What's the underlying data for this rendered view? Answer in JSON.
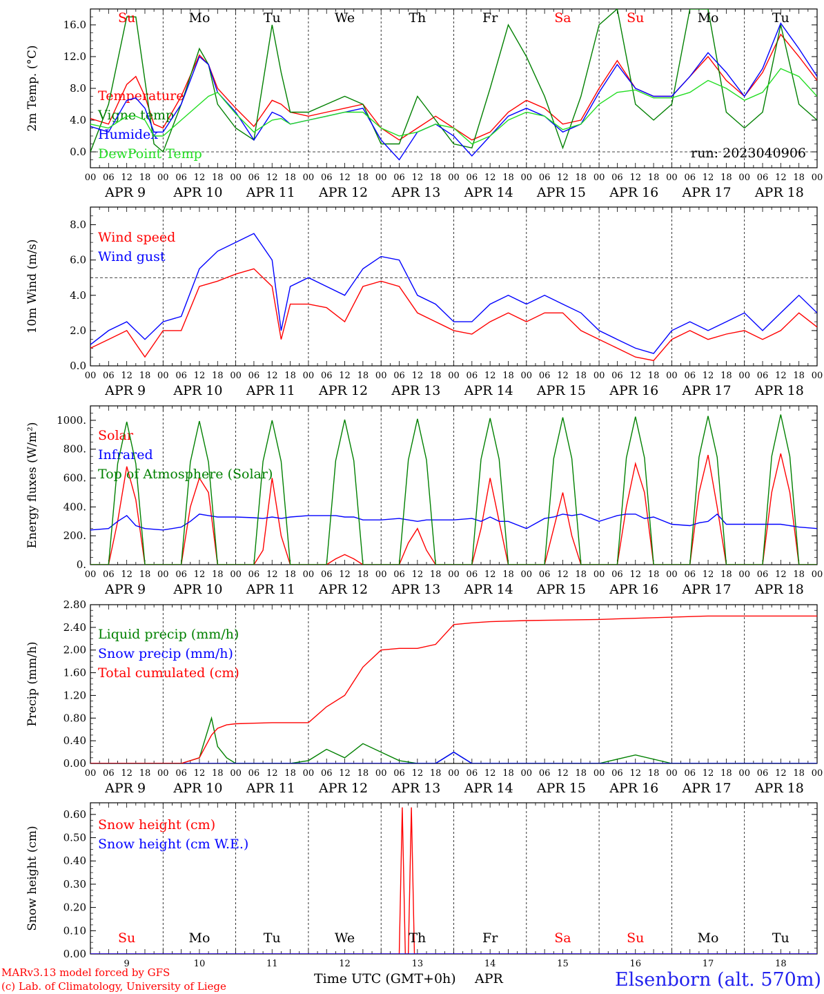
{
  "colors": {
    "red": "#ff0000",
    "blue": "#0000ff",
    "green": "#008000",
    "lightgreen": "#22dd22",
    "station": "#2222ee"
  },
  "days": [
    "Su",
    "Mo",
    "Tu",
    "We",
    "Th",
    "Fr",
    "Sa",
    "Su",
    "Mo",
    "Tu"
  ],
  "day_colors": [
    "#ff0000",
    "#000000",
    "#000000",
    "#000000",
    "#000000",
    "#000000",
    "#ff0000",
    "#ff0000",
    "#000000",
    "#000000"
  ],
  "dates": [
    "APR  9",
    "APR 10",
    "APR 11",
    "APR 12",
    "APR 13",
    "APR 14",
    "APR 15",
    "APR 16",
    "APR 17",
    "APR 18"
  ],
  "day_numbers": [
    "9",
    "10",
    "11",
    "12",
    "13",
    "14",
    "15",
    "16",
    "17",
    "18"
  ],
  "hour_labels": [
    "00",
    "06",
    "12",
    "18"
  ],
  "run_label": "run: 2023040906",
  "footer": {
    "model": "MARv3.13 model forced by GFS",
    "copyright": "(c) Lab. of Climatology, University of Liege",
    "time_axis": "Time UTC (GMT+0h)",
    "month": "APR",
    "station": "Elsenborn (alt. 570m)"
  },
  "chart_data": [
    {
      "type": "line",
      "ylabel": "2m Temp. (°C)",
      "ylim": [
        -2,
        18
      ],
      "yticks": [
        0,
        4,
        8,
        12,
        16
      ],
      "ytick_labels": [
        "0.0",
        "4.0",
        "8.0",
        "12.0",
        "16.0"
      ],
      "ref_line": 0,
      "xlim": [
        0,
        240
      ],
      "x_hours": [
        0,
        6,
        12,
        15,
        18,
        21,
        24,
        30,
        36,
        39,
        42,
        48,
        54,
        60,
        63,
        66,
        72,
        78,
        84,
        90,
        96,
        102,
        108,
        114,
        120,
        126,
        132,
        138,
        144,
        150,
        156,
        162,
        168,
        174,
        180,
        186,
        192,
        198,
        204,
        210,
        216,
        222,
        228,
        234,
        240
      ],
      "series": [
        {
          "name": "Temperature",
          "color": "#ff0000",
          "values": [
            4.2,
            3.5,
            8.5,
            9.5,
            7.0,
            3.5,
            3.0,
            7.0,
            12.2,
            11.0,
            8.0,
            5.5,
            3.2,
            6.5,
            6.0,
            5.0,
            4.5,
            5.0,
            5.5,
            6.0,
            3.0,
            1.5,
            3.0,
            4.5,
            3.0,
            1.5,
            2.5,
            5.0,
            6.5,
            5.5,
            3.5,
            4.0,
            8.0,
            11.5,
            8.0,
            7.0,
            7.0,
            9.5,
            12.0,
            9.0,
            7.0,
            10.0,
            14.8,
            12.0,
            9.0
          ]
        },
        {
          "name": "Vigne temp",
          "color": "#008000",
          "values": [
            0,
            6,
            17,
            17,
            9,
            1,
            0,
            6,
            13,
            11,
            6,
            3,
            1.5,
            16,
            10,
            5,
            5,
            6,
            7,
            6,
            1,
            1,
            7,
            4,
            1,
            0.5,
            8,
            16,
            12,
            7,
            0.5,
            7,
            16,
            18,
            6,
            4,
            6,
            18,
            18,
            5,
            3,
            5,
            16,
            6,
            4
          ]
        },
        {
          "name": "Humidex",
          "color": "#0000ff",
          "values": [
            3.2,
            2.5,
            6.5,
            6.8,
            5.5,
            2.5,
            2.5,
            6.0,
            12.0,
            11.0,
            7.5,
            5.0,
            1.5,
            5.0,
            4.5,
            3.5,
            4.0,
            4.5,
            5.0,
            5.5,
            1.5,
            -1.0,
            2.5,
            3.5,
            2.0,
            -0.5,
            2.0,
            4.5,
            5.5,
            4.5,
            2.5,
            3.5,
            7.5,
            11.0,
            8.0,
            7.0,
            7.0,
            9.5,
            12.5,
            10.0,
            7.0,
            10.5,
            16.2,
            13.0,
            9.5
          ]
        },
        {
          "name": "DewPoint Temp",
          "color": "#22dd22",
          "values": [
            3.5,
            3.0,
            4.5,
            4.5,
            4.0,
            2.0,
            2.0,
            4.0,
            6.0,
            7.0,
            7.5,
            4.8,
            2.5,
            4.0,
            4.2,
            3.5,
            4.0,
            4.5,
            5.0,
            5.0,
            3.0,
            2.0,
            2.5,
            3.5,
            3.0,
            1.0,
            2.0,
            4.0,
            5.0,
            4.5,
            2.8,
            3.5,
            6.0,
            7.5,
            7.8,
            6.8,
            6.8,
            7.5,
            9.0,
            8.0,
            6.5,
            7.5,
            10.5,
            9.5,
            7.0
          ]
        }
      ]
    },
    {
      "type": "line",
      "ylabel": "10m Wind (m/s)",
      "ylim": [
        0,
        9
      ],
      "yticks": [
        0,
        2,
        4,
        6,
        8
      ],
      "ytick_labels": [
        "0.0",
        "2.0",
        "4.0",
        "6.0",
        "8.0"
      ],
      "ref_line": 5,
      "xlim": [
        0,
        240
      ],
      "x_hours": [
        0,
        6,
        12,
        18,
        24,
        30,
        36,
        42,
        48,
        54,
        60,
        63,
        66,
        72,
        78,
        84,
        90,
        96,
        102,
        108,
        114,
        120,
        126,
        132,
        138,
        144,
        150,
        156,
        162,
        168,
        174,
        180,
        186,
        192,
        198,
        204,
        210,
        216,
        222,
        228,
        234,
        240
      ],
      "series": [
        {
          "name": "Wind speed",
          "color": "#ff0000",
          "values": [
            1.0,
            1.5,
            2.0,
            0.5,
            2.0,
            2.0,
            4.5,
            4.8,
            5.2,
            5.5,
            4.5,
            1.5,
            3.5,
            3.5,
            3.3,
            2.5,
            4.5,
            4.8,
            4.5,
            3.0,
            2.5,
            2.0,
            1.8,
            2.5,
            3.0,
            2.5,
            3.0,
            3.0,
            2.0,
            1.5,
            1.0,
            0.5,
            0.3,
            1.5,
            2.0,
            1.5,
            1.8,
            2.0,
            1.5,
            2.0,
            3.0,
            2.2
          ]
        },
        {
          "name": "Wind gust",
          "color": "#0000ff",
          "values": [
            1.2,
            2.0,
            2.5,
            1.5,
            2.5,
            2.8,
            5.5,
            6.5,
            7.0,
            7.5,
            6.0,
            2.0,
            4.5,
            5.0,
            4.5,
            4.0,
            5.5,
            6.2,
            6.0,
            4.0,
            3.5,
            2.5,
            2.5,
            3.5,
            4.0,
            3.5,
            4.0,
            3.5,
            3.0,
            2.0,
            1.5,
            1.0,
            0.7,
            2.0,
            2.5,
            2.0,
            2.5,
            3.0,
            2.0,
            3.0,
            4.0,
            3.0
          ]
        }
      ]
    },
    {
      "type": "line",
      "ylabel": "Energy fluxes (W/m²)",
      "ylim": [
        0,
        1100
      ],
      "yticks": [
        0,
        200,
        400,
        600,
        800,
        1000
      ],
      "ytick_labels": [
        "0.",
        "200.",
        "400.",
        "600.",
        "800.",
        "1000."
      ],
      "xlim": [
        0,
        240
      ],
      "x_hours": [
        0,
        6,
        9,
        12,
        15,
        18,
        24,
        30,
        33,
        36,
        39,
        42,
        48,
        54,
        57,
        60,
        63,
        66,
        72,
        78,
        81,
        84,
        87,
        90,
        96,
        102,
        105,
        108,
        111,
        114,
        120,
        126,
        129,
        132,
        135,
        138,
        144,
        150,
        153,
        156,
        159,
        162,
        168,
        174,
        177,
        180,
        183,
        186,
        192,
        198,
        201,
        204,
        207,
        210,
        216,
        222,
        225,
        228,
        231,
        234,
        240
      ],
      "series": [
        {
          "name": "Solar",
          "color": "#ff0000",
          "values": [
            0,
            0,
            300,
            680,
            450,
            0,
            0,
            0,
            400,
            600,
            500,
            0,
            0,
            0,
            100,
            600,
            200,
            0,
            0,
            0,
            40,
            70,
            40,
            0,
            0,
            0,
            150,
            250,
            100,
            0,
            0,
            0,
            250,
            600,
            300,
            0,
            0,
            0,
            250,
            500,
            200,
            0,
            0,
            0,
            400,
            700,
            500,
            0,
            0,
            0,
            500,
            760,
            400,
            0,
            0,
            0,
            500,
            770,
            500,
            0,
            0
          ]
        },
        {
          "name": "Infrared",
          "color": "#0000ff",
          "values": [
            240,
            250,
            300,
            340,
            270,
            250,
            240,
            260,
            300,
            350,
            340,
            330,
            330,
            325,
            320,
            330,
            320,
            330,
            340,
            340,
            340,
            330,
            330,
            310,
            310,
            320,
            310,
            300,
            310,
            310,
            310,
            320,
            300,
            330,
            300,
            300,
            250,
            320,
            330,
            350,
            340,
            350,
            300,
            340,
            350,
            350,
            320,
            330,
            280,
            270,
            290,
            300,
            350,
            280,
            280,
            280,
            280,
            280,
            270,
            260,
            250
          ]
        },
        {
          "name": "Top of Atmosphere (Solar)",
          "color": "#008000",
          "values": [
            0,
            0,
            700,
            990,
            700,
            0,
            0,
            0,
            710,
            995,
            710,
            0,
            0,
            0,
            715,
            1000,
            715,
            0,
            0,
            0,
            720,
            1005,
            720,
            0,
            0,
            0,
            725,
            1010,
            725,
            0,
            0,
            0,
            730,
            1015,
            730,
            0,
            0,
            0,
            735,
            1020,
            735,
            0,
            0,
            0,
            740,
            1025,
            740,
            0,
            0,
            0,
            745,
            1030,
            745,
            0,
            0,
            0,
            750,
            1040,
            750,
            0,
            0
          ]
        }
      ]
    },
    {
      "type": "line",
      "ylabel": "Precip (mm/h)",
      "ylim": [
        0,
        2.8
      ],
      "yticks": [
        0,
        0.4,
        0.8,
        1.2,
        1.6,
        2.0,
        2.4,
        2.8
      ],
      "ytick_labels": [
        "0.00",
        "0.40",
        "0.80",
        "1.20",
        "1.60",
        "2.00",
        "2.40",
        "2.80"
      ],
      "xlim": [
        0,
        240
      ],
      "x_hours": [
        0,
        30,
        36,
        40,
        42,
        45,
        48,
        54,
        60,
        66,
        72,
        78,
        84,
        90,
        96,
        102,
        108,
        114,
        120,
        126,
        132,
        144,
        156,
        168,
        180,
        192,
        204,
        216,
        228,
        240
      ],
      "series": [
        {
          "name": "Liquid precip (mm/h)",
          "color": "#008000",
          "values": [
            0,
            0,
            0.1,
            0.8,
            0.3,
            0.1,
            0.0,
            0,
            0,
            0,
            0.05,
            0.25,
            0.1,
            0.35,
            0.2,
            0.05,
            0,
            0,
            0.2,
            0,
            0,
            0,
            0,
            0,
            0.15,
            0,
            0,
            0,
            0,
            0
          ]
        },
        {
          "name": "Snow precip (mm/h)",
          "color": "#0000ff",
          "values": [
            0,
            0,
            0,
            0,
            0,
            0,
            0,
            0,
            0,
            0,
            0,
            0,
            0,
            0,
            0,
            0,
            0,
            0,
            0.2,
            0,
            0,
            0,
            0,
            0,
            0,
            0,
            0,
            0,
            0,
            0
          ]
        },
        {
          "name": "Total cumulated (cm)",
          "color": "#ff0000",
          "values": [
            0,
            0,
            0.1,
            0.5,
            0.62,
            0.68,
            0.7,
            0.71,
            0.72,
            0.72,
            0.72,
            1.0,
            1.2,
            1.7,
            2.0,
            2.03,
            2.03,
            2.1,
            2.45,
            2.48,
            2.5,
            2.52,
            2.53,
            2.54,
            2.56,
            2.58,
            2.6,
            2.6,
            2.6,
            2.6
          ]
        }
      ]
    },
    {
      "type": "line",
      "ylabel": "Snow height (cm)",
      "ylim": [
        0,
        0.65
      ],
      "yticks": [
        0,
        0.1,
        0.2,
        0.3,
        0.4,
        0.5,
        0.6
      ],
      "ytick_labels": [
        "0.00",
        "0.10",
        "0.20",
        "0.30",
        "0.40",
        "0.50",
        "0.60"
      ],
      "xlim": [
        0,
        240
      ],
      "x_hours": [
        0,
        102,
        103,
        104,
        105,
        106,
        107,
        108,
        240
      ],
      "series": [
        {
          "name": "Snow height (cm)",
          "color": "#ff0000",
          "values": [
            0,
            0,
            0.63,
            0,
            0,
            0.63,
            0,
            0,
            0
          ]
        },
        {
          "name": "Snow height (cm W.E.)",
          "color": "#0000ff",
          "values": [
            0,
            0,
            0,
            0,
            0,
            0,
            0,
            0,
            0
          ]
        }
      ]
    }
  ]
}
